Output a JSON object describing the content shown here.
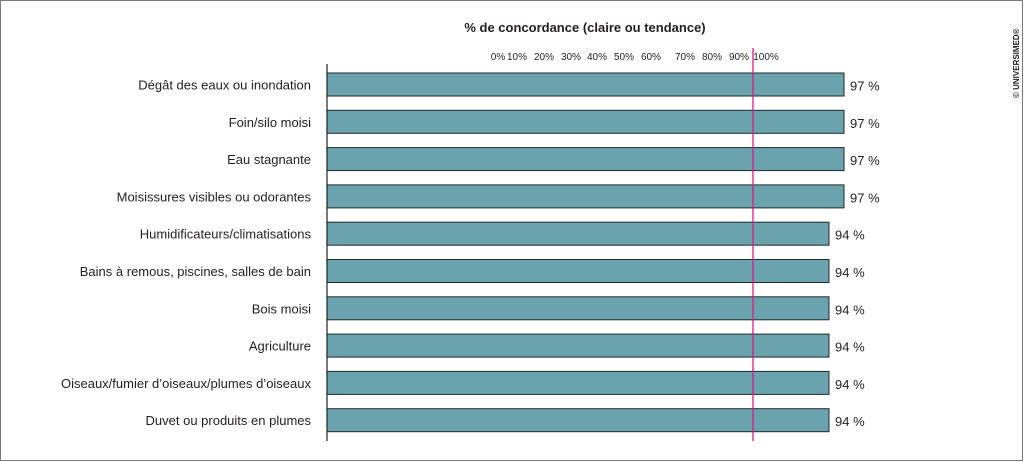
{
  "credit": "© UNIVERSIMED®",
  "chart_data": {
    "type": "bar",
    "orientation": "horizontal",
    "title": "% de concordance (claire ou tendance)",
    "categories": [
      "Dégât des eaux ou inondation",
      "Foin/silo moisi",
      "Eau stagnante",
      "Moisissures visibles ou odorantes",
      "Humidificateurs/climatisations",
      "Bains à remous, piscines, salles de bain",
      "Bois moisi",
      "Agriculture",
      "Oiseaux/fumier d’oiseaux/plumes d’oiseaux",
      "Duvet ou produits en plumes"
    ],
    "values": [
      97,
      97,
      97,
      97,
      94,
      94,
      94,
      94,
      94,
      94
    ],
    "value_labels": [
      "97 %",
      "97 %",
      "97 %",
      "97 %",
      "94 %",
      "94 %",
      "94 %",
      "94 %",
      "94 %",
      "94 %"
    ],
    "tick_labels": [
      {
        "value": 0,
        "label": "0%"
      },
      {
        "value": 10,
        "label": "10%"
      },
      {
        "value": 20,
        "label": "20%"
      },
      {
        "value": 30,
        "label": "30%"
      },
      {
        "value": 40,
        "label": "40%"
      },
      {
        "value": 50,
        "label": "50%"
      },
      {
        "value": 60,
        "label": "60%"
      },
      {
        "value": 70,
        "label": "70%"
      },
      {
        "value": 80,
        "label": "80%"
      },
      {
        "value": 90,
        "label": "90%"
      },
      {
        "value": 100,
        "label": "100%"
      }
    ],
    "reference_line": 80,
    "bar_color": "#6aa3ad",
    "bar_outline_color": "#1f2a2c",
    "reference_line_color": "#d81b84",
    "grid": false,
    "legend": "none"
  }
}
